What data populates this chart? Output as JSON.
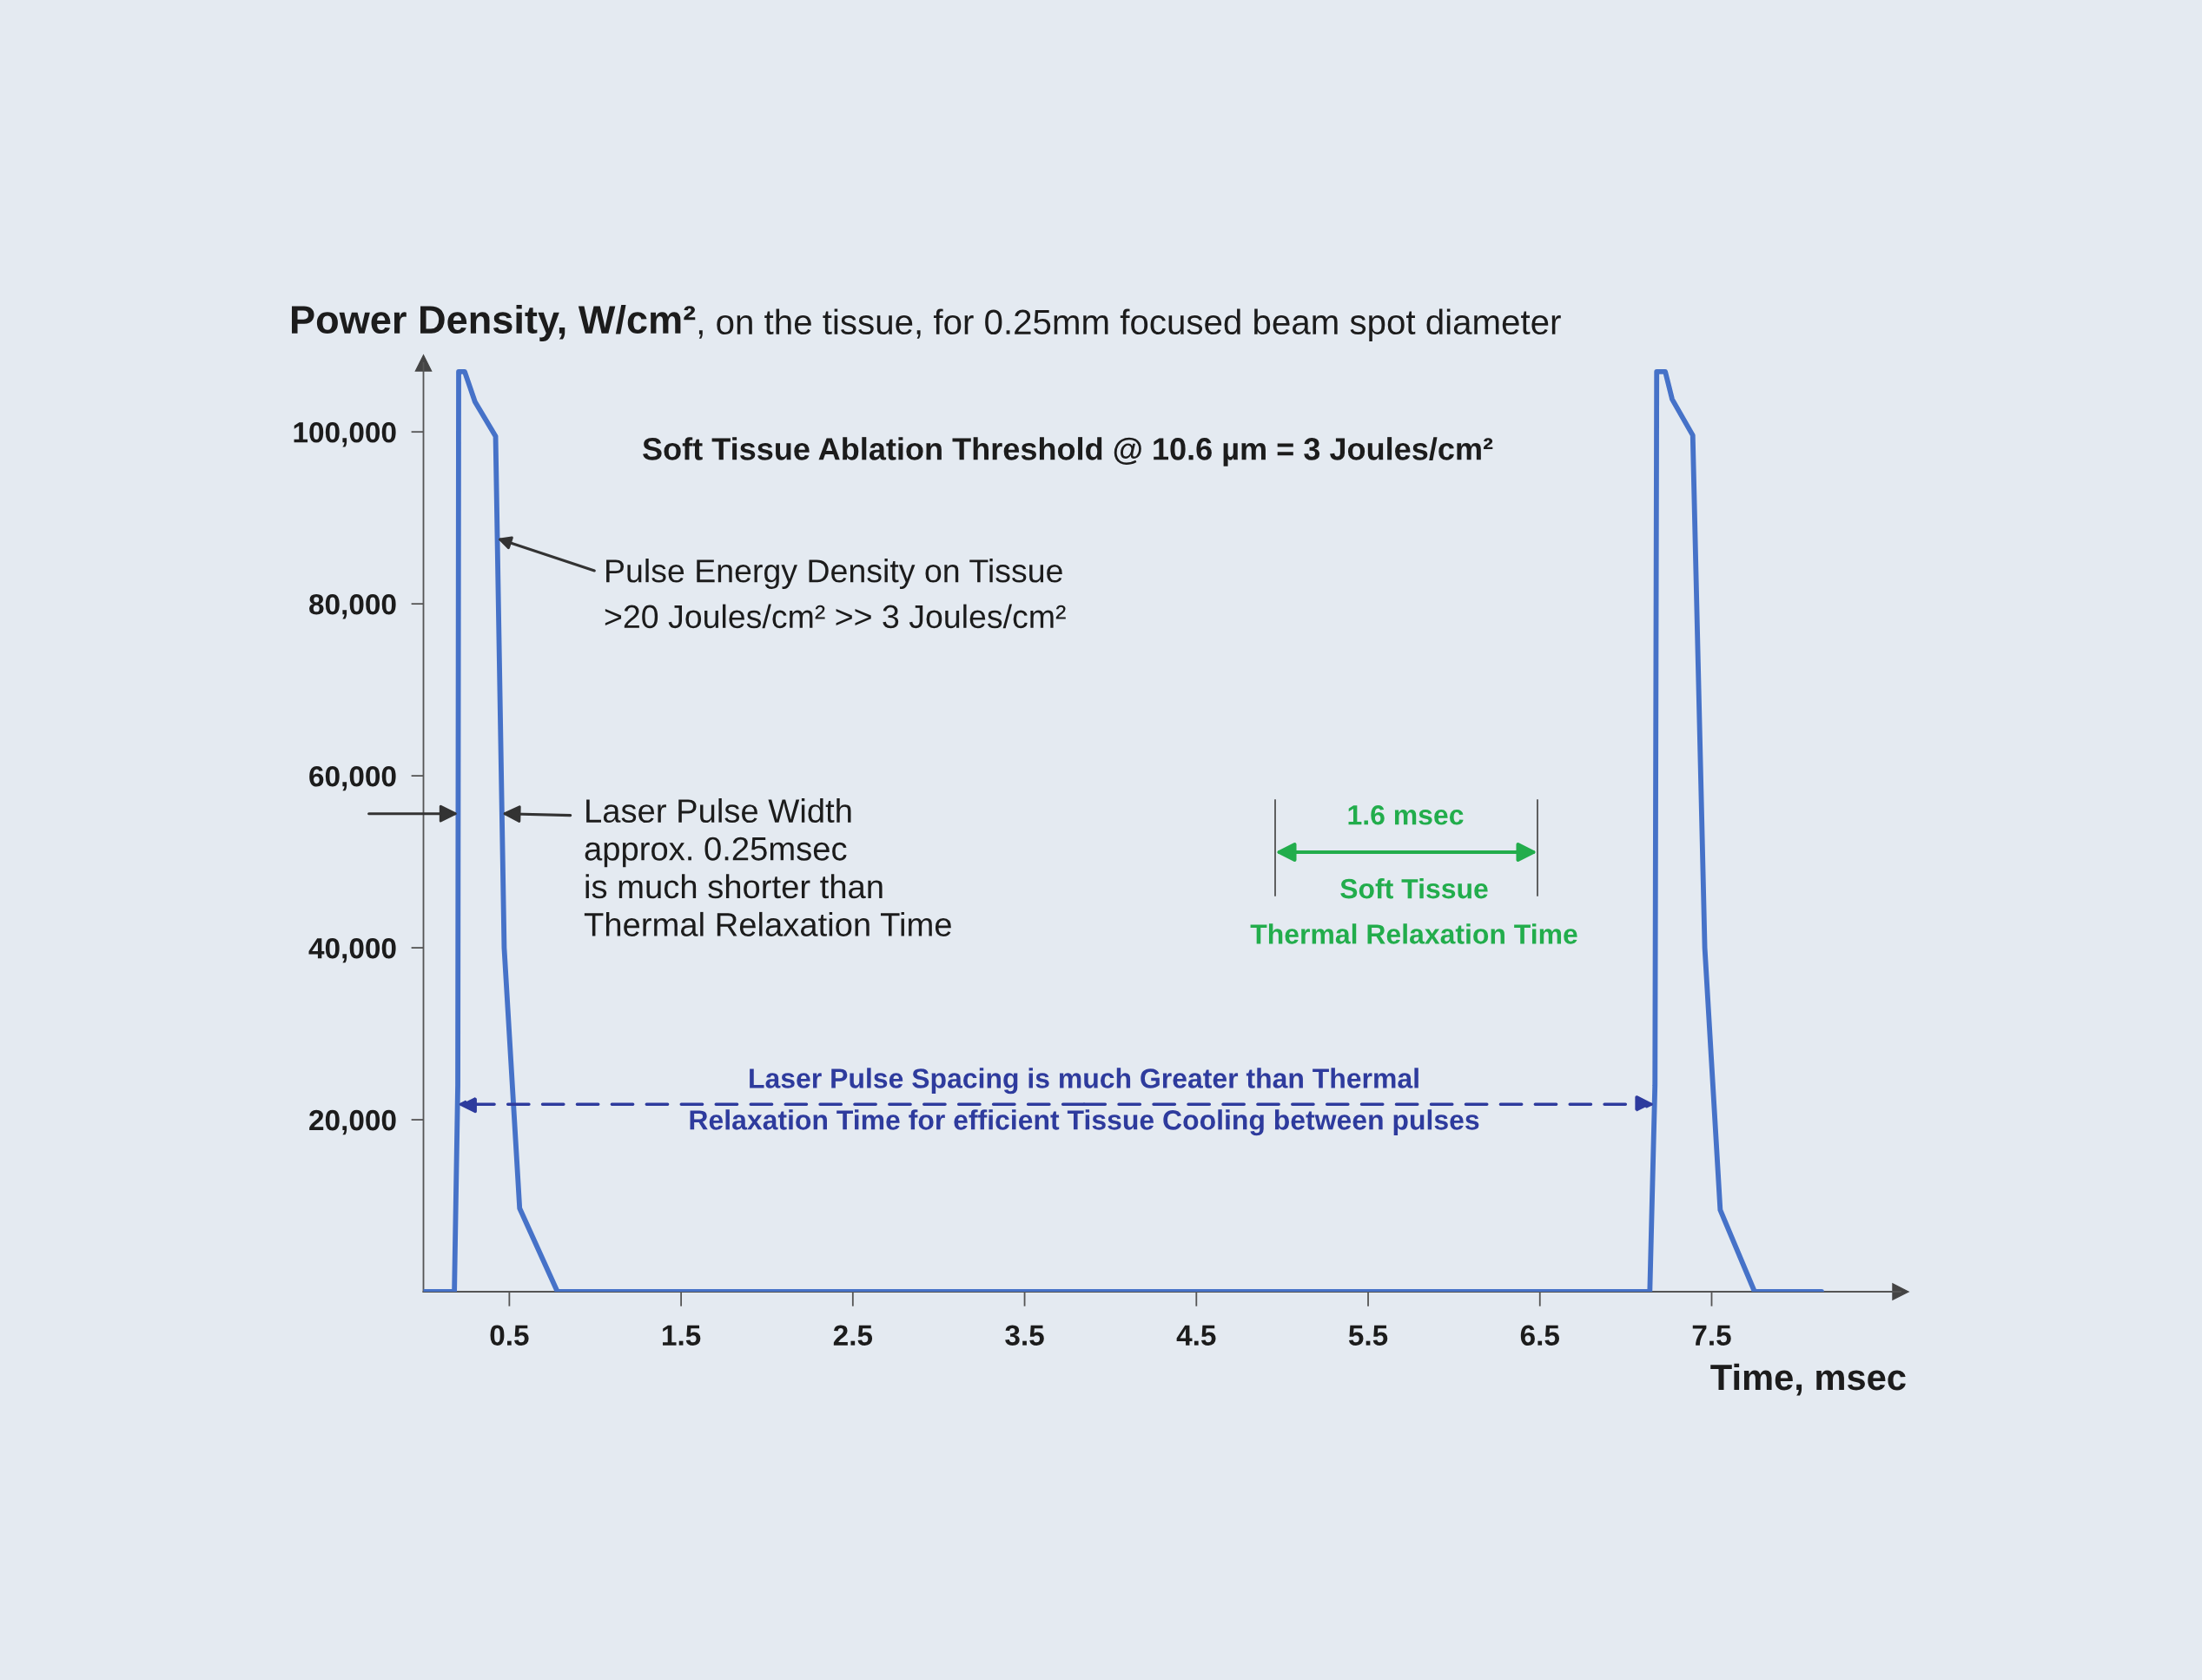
{
  "chart_data": {
    "type": "line",
    "title": "Soft Tissue Ablation Threshold @ 10.6 µm = 3 Joules/cm²",
    "subtitle": ", on the tissue, for 0.25mm focused beam spot diameter",
    "ylabel": "Power Density, W/cm²",
    "xlabel": "Time, msec",
    "x": [
      0,
      0.18,
      0.2,
      0.205,
      0.24,
      0.3,
      0.42,
      0.47,
      0.56,
      0.78,
      7.14,
      7.17,
      7.18,
      7.23,
      7.27,
      7.39,
      7.46,
      7.55,
      7.75,
      8.14
    ],
    "series": [
      {
        "color": "#4672c8",
        "values": [
          0,
          0,
          24000,
          107000,
          107000,
          103500,
          99500,
          40000,
          9700,
          0,
          0,
          24000,
          107000,
          107000,
          103800,
          99600,
          40000,
          9500,
          0,
          0
        ]
      }
    ],
    "xlim": [
      0,
      8.6
    ],
    "ylim": [
      0,
      108000
    ],
    "xticks": [
      0.5,
      1.5,
      2.5,
      3.5,
      4.5,
      5.5,
      6.5,
      7.5
    ],
    "yticks": [
      {
        "value": 20000,
        "label": "20,000"
      },
      {
        "value": 40000,
        "label": "40,000"
      },
      {
        "value": 60000,
        "label": "60,000"
      },
      {
        "value": 80000,
        "label": "80,000"
      },
      {
        "value": 100000,
        "label": "100,000"
      }
    ],
    "annotations": [
      {
        "text": "Pulse Energy Density on Tissue\n>20 Joules/cm² >> 3 Joules/cm²",
        "x": 0.43,
        "y": 87600
      },
      {
        "text": "Laser Pulse Width\napprox. 0.25msec\nis much shorter than\nThermal Relaxation Time",
        "x": 0.457,
        "y": 55600
      },
      "1.6 msec",
      "Soft Tissue\nThermal Relaxation Time",
      {
        "text": "Laser Pulse Spacing is much Greater than Thermal",
        "x": 0.198,
        "y": 21800
      },
      {
        "text": "Relaxation Time for efficient Tissue Cooling between pulses",
        "x": 7.167,
        "y": 21800
      }
    ],
    "line_style": "solid"
  }
}
